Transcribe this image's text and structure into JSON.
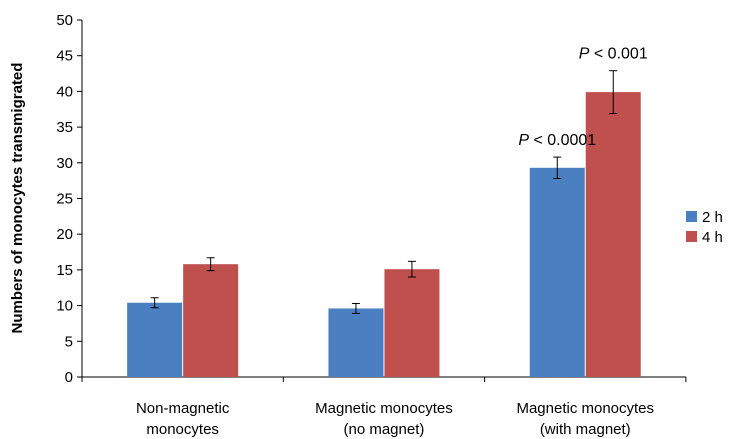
{
  "chart_data": {
    "type": "bar",
    "title": "",
    "xlabel": "",
    "ylabel": "Numbers of monocytes transmigrated",
    "ylim": [
      0,
      50
    ],
    "yticks": [
      0,
      5,
      10,
      15,
      20,
      25,
      30,
      35,
      40,
      45,
      50
    ],
    "categories": [
      [
        "Non-magnetic",
        "monocytes"
      ],
      [
        "Magnetic monocytes",
        "(no magnet)"
      ],
      [
        "Magnetic monocytes",
        "(with magnet)"
      ]
    ],
    "series": [
      {
        "name": "2 h",
        "color": "#4a7fc1",
        "values": [
          10.4,
          9.6,
          29.3
        ],
        "errors": [
          0.7,
          0.7,
          1.5
        ]
      },
      {
        "name": "4 h",
        "color": "#c0504d",
        "values": [
          15.8,
          15.1,
          39.9
        ],
        "errors": [
          0.9,
          1.1,
          3.0
        ]
      }
    ],
    "annotations": [
      {
        "prefix": "P",
        "text": " < 0.0001",
        "category_index": 2,
        "series_index": 0
      },
      {
        "prefix": "P",
        "text": " < 0.001",
        "category_index": 2,
        "series_index": 1
      }
    ],
    "legend": "right",
    "grid": false
  }
}
